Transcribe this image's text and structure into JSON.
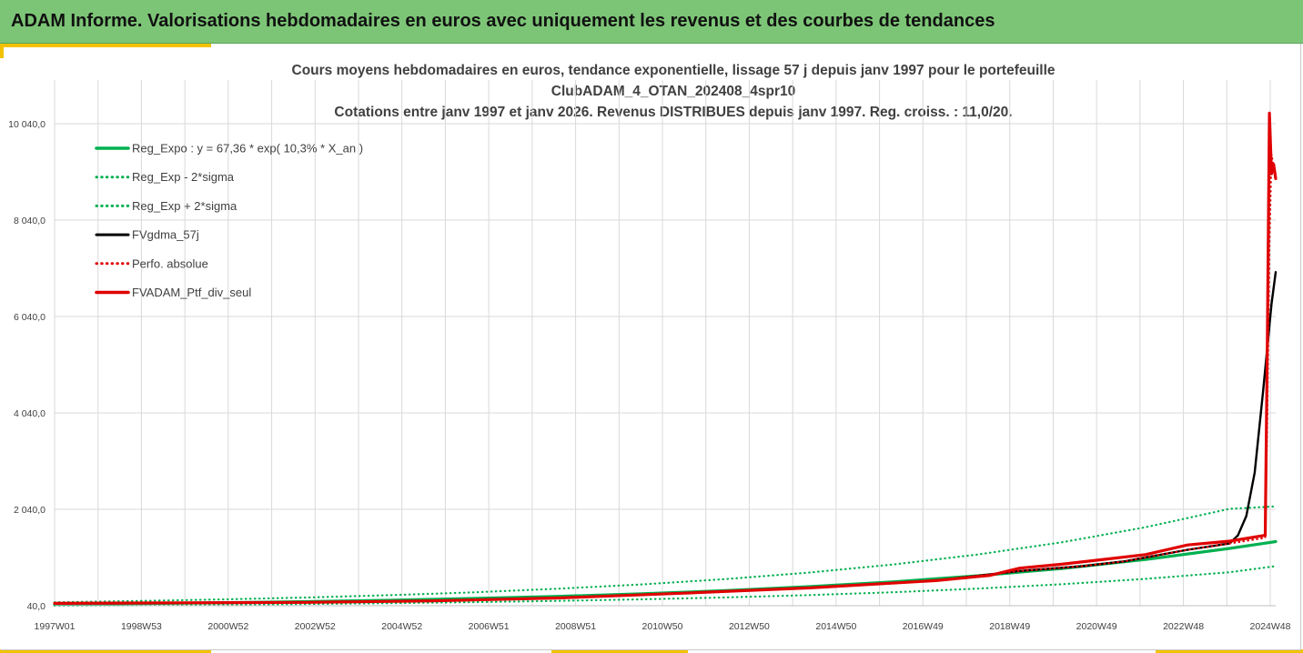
{
  "header": {
    "title": "ADAM Informe. Valorisations hebdomadaires en euros avec uniquement les revenus et des courbes de tendances"
  },
  "colors": {
    "banner": "#7cc576",
    "accent": "#f2c200",
    "reg_expo": "#00b050",
    "fvgdma": "#000000",
    "portfolio": "#e00000"
  },
  "chart_data": {
    "type": "line",
    "title_lines": [
      "Cours moyens hebdomadaires  en euros, tendance exponentielle, lissage 57 j depuis janv 1997 pour le portefeuille",
      "ClubADAM_4_OTAN_202408_4spr10",
      "Cotations entre janv 1997 et janv 2026. Revenus DISTRIBUES depuis janv 1997. Reg. croiss. : 11,0/20."
    ],
    "x_tick_labels": [
      "1997W01",
      "1998W53",
      "2000W52",
      "2002W52",
      "2004W52",
      "2006W51",
      "2008W51",
      "2010W50",
      "2012W50",
      "2014W50",
      "2016W49",
      "2018W49",
      "2020W49",
      "2022W48",
      "2024W48"
    ],
    "y_tick_labels": [
      "40,0",
      "2 040,0",
      "4 040,0",
      "6 040,0",
      "8 040,0",
      "10 040,0"
    ],
    "y_ticks": [
      40,
      2040,
      4040,
      6040,
      8040,
      10040
    ],
    "ylim": [
      40,
      11040
    ],
    "xlim": [
      1997.0,
      2026.1
    ],
    "grid": true,
    "legend_position": "top-left",
    "series": [
      {
        "name": "Reg_Expo : y = 67,36 * exp( 10,3% *  X_an )",
        "color": "#00b050",
        "style": "solid",
        "x": [
          1997,
          1999,
          2001,
          2003,
          2005,
          2007,
          2009,
          2011,
          2013,
          2015,
          2017,
          2019,
          2021,
          2023,
          2025,
          2026.1
        ],
        "y": [
          67,
          83,
          102,
          125,
          154,
          190,
          234,
          288,
          354,
          436,
          536,
          660,
          812,
          998,
          1228,
          1370
        ]
      },
      {
        "name": "Reg_Exp - 2*sigma",
        "color": "#00b050",
        "style": "dotted",
        "x": [
          1997,
          1999,
          2001,
          2003,
          2005,
          2007,
          2009,
          2011,
          2013,
          2015,
          2017,
          2019,
          2021,
          2023,
          2025,
          2026.1
        ],
        "y": [
          40,
          50,
          61,
          75,
          92,
          114,
          140,
          172,
          212,
          260,
          320,
          394,
          485,
          597,
          735,
          860
        ]
      },
      {
        "name": "Reg_Exp + 2*sigma",
        "color": "#00b050",
        "style": "dotted",
        "x": [
          1997,
          1999,
          2001,
          2003,
          2005,
          2007,
          2009,
          2011,
          2013,
          2015,
          2017,
          2019,
          2021,
          2023,
          2025,
          2026.1
        ],
        "y": [
          112,
          138,
          170,
          210,
          258,
          318,
          392,
          482,
          592,
          728,
          896,
          1102,
          1356,
          1668,
          2050,
          2100
        ]
      },
      {
        "name": "FVgdma_57j",
        "color": "#000000",
        "style": "solid",
        "x": [
          1997,
          2000,
          2003,
          2006,
          2009,
          2012,
          2015,
          2018,
          2020,
          2021.5,
          2022.5,
          2024,
          2025,
          2025.2,
          2025.4,
          2025.6,
          2025.8,
          2026.0,
          2026.1
        ],
        "y": [
          90,
          100,
          110,
          140,
          200,
          300,
          410,
          560,
          760,
          860,
          960,
          1200,
          1330,
          1500,
          1900,
          2800,
          4500,
          6300,
          6960
        ]
      },
      {
        "name": "Perfo. absolue",
        "color": "#e00000",
        "style": "dotted",
        "x": [
          1997,
          2000,
          2003,
          2006,
          2009,
          2012,
          2015,
          2018,
          2020,
          2021.5,
          2022.5,
          2024,
          2025,
          2025.85,
          2025.9,
          2025.95,
          2026.0,
          2026.1
        ],
        "y": [
          90,
          100,
          110,
          140,
          200,
          300,
          410,
          560,
          760,
          860,
          960,
          1200,
          1330,
          1450,
          4000,
          7500,
          9400,
          8900
        ]
      },
      {
        "name": "FVADAM_Ptf_div_seul",
        "color": "#e00000",
        "style": "solid",
        "x": [
          1997,
          2000,
          2003,
          2006,
          2009,
          2012,
          2015,
          2018,
          2019.3,
          2020,
          2021,
          2022,
          2023,
          2024,
          2025,
          2025.85,
          2025.9,
          2025.95,
          2026.0,
          2026.05,
          2026.1
        ],
        "y": [
          90,
          100,
          110,
          140,
          200,
          300,
          410,
          560,
          670,
          820,
          900,
          1000,
          1100,
          1300,
          1380,
          1500,
          5500,
          10260,
          9000,
          9200,
          8900
        ]
      }
    ]
  }
}
